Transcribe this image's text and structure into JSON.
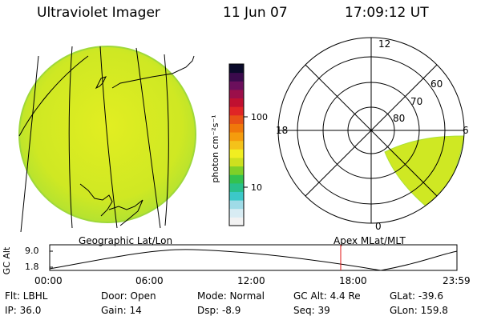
{
  "header": {
    "instrument": "Ultraviolet Imager",
    "date": "11 Jun 07",
    "time": "17:09:12 UT"
  },
  "colorbar": {
    "unit_label": "photon cm⁻²s⁻¹",
    "ticks": [
      "100",
      "10"
    ],
    "palette": [
      "#f2f2f2",
      "#d8ecf3",
      "#9fdbe7",
      "#3cc8c8",
      "#29c08a",
      "#33c24f",
      "#7fd028",
      "#cde01f",
      "#f1ee21",
      "#f4c21a",
      "#f59c0d",
      "#f0780a",
      "#e85216",
      "#e02525",
      "#c01030",
      "#9b0f4a",
      "#6b0f5c",
      "#3a0a4c",
      "#0a0a2a"
    ]
  },
  "polar_plot": {
    "mlt_labels": [
      "12",
      "18",
      "6",
      "0"
    ],
    "lat_labels": [
      "60",
      "70",
      "80"
    ]
  },
  "section_labels": {
    "left": "Geographic Lat/Lon",
    "right": "Apex MLat/MLT"
  },
  "altitude_plot": {
    "ylabel": "GC Alt",
    "y_ticks": [
      "9.0",
      "1.8"
    ],
    "x_ticks": [
      "00:00",
      "06:00",
      "12:00",
      "18:00",
      "23:59"
    ],
    "current_time_hours": 17.15
  },
  "footer": {
    "flt": "Flt: LBHL",
    "ip": "IP: 36.0",
    "door": "Door: Open",
    "gain": "Gain: 14",
    "mode": "Mode: Normal",
    "dsp": "Dsp:   -8.9",
    "gc_alt": "GC Alt: 4.4 Re",
    "seq": "Seq: 39",
    "glat": "GLat: -39.6",
    "glon": "GLon: 159.8"
  },
  "colors": {
    "disk_fill": "#d8ec22",
    "current_time_marker": "#e01010"
  }
}
